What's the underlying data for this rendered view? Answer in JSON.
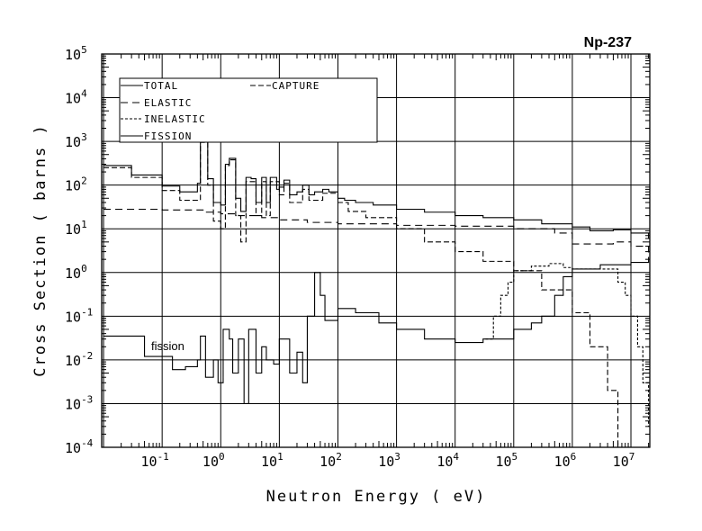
{
  "chart_data": {
    "type": "line",
    "title": "Np-237",
    "xlabel": "Neutron Energy ( eV)",
    "ylabel": "Cross Section ( barns )",
    "xscale": "log",
    "yscale": "log",
    "xlim": [
      0.0093,
      21000000
    ],
    "ylim": [
      0.0001,
      100000
    ],
    "grid": true,
    "legend_position": "top-left",
    "x_tick_exponents": [
      "-1",
      "0",
      "1",
      "2",
      "3",
      "4",
      "5",
      "6",
      "7"
    ],
    "y_tick_exponents": [
      "5",
      "4",
      "3",
      "2",
      "1",
      "0",
      "-1",
      "-2",
      "-3",
      "-4"
    ],
    "tick_base": "10",
    "annotation": "fission",
    "series": [
      {
        "name": "TOTAL",
        "style": "solid",
        "points": [
          [
            0.01,
            280
          ],
          [
            0.03,
            170
          ],
          [
            0.1,
            95
          ],
          [
            0.2,
            70
          ],
          [
            0.3,
            70
          ],
          [
            0.4,
            110
          ],
          [
            0.45,
            1000
          ],
          [
            0.6,
            140
          ],
          [
            0.75,
            40
          ],
          [
            1,
            35
          ],
          [
            1.2,
            300
          ],
          [
            1.4,
            410
          ],
          [
            1.8,
            50
          ],
          [
            2.2,
            25
          ],
          [
            2.7,
            150
          ],
          [
            3.3,
            140
          ],
          [
            4,
            40
          ],
          [
            5,
            150
          ],
          [
            6,
            40
          ],
          [
            7,
            150
          ],
          [
            9,
            80
          ],
          [
            10,
            90
          ],
          [
            12,
            130
          ],
          [
            15,
            60
          ],
          [
            20,
            70
          ],
          [
            25,
            100
          ],
          [
            32,
            60
          ],
          [
            40,
            70
          ],
          [
            55,
            80
          ],
          [
            70,
            70
          ],
          [
            100,
            50
          ],
          [
            130,
            45
          ],
          [
            200,
            40
          ],
          [
            400,
            35
          ],
          [
            1000,
            28
          ],
          [
            3000,
            24
          ],
          [
            10000,
            20
          ],
          [
            30000,
            18
          ],
          [
            100000,
            16
          ],
          [
            300000,
            13
          ],
          [
            1000000,
            11
          ],
          [
            2000000,
            9
          ],
          [
            5000000,
            9.5
          ],
          [
            10000000,
            8
          ],
          [
            20000000,
            6
          ]
        ]
      },
      {
        "name": "ELASTIC",
        "style": "dashed",
        "points": [
          [
            0.01,
            28
          ],
          [
            0.1,
            27
          ],
          [
            0.5,
            24
          ],
          [
            1,
            22
          ],
          [
            2,
            20
          ],
          [
            5,
            18
          ],
          [
            10,
            16
          ],
          [
            30,
            14
          ],
          [
            100,
            13
          ],
          [
            1000,
            12
          ],
          [
            10000,
            11.5
          ],
          [
            100000,
            10
          ],
          [
            500000,
            8
          ],
          [
            1000000,
            4.5
          ],
          [
            5000000,
            5
          ],
          [
            10000000,
            4
          ],
          [
            20000000,
            2
          ]
        ]
      },
      {
        "name": "INELASTIC",
        "style": "dotted",
        "points": [
          [
            33000,
            0.03
          ],
          [
            40000,
            0.03
          ],
          [
            45000,
            0.1
          ],
          [
            60000,
            0.3
          ],
          [
            80000,
            0.6
          ],
          [
            100000,
            1.1
          ],
          [
            200000,
            1.4
          ],
          [
            400000,
            1.6
          ],
          [
            700000,
            1.3
          ],
          [
            1000000,
            1.2
          ],
          [
            5000000,
            1.2
          ],
          [
            6000000,
            0.6
          ],
          [
            8000000,
            0.3
          ],
          [
            10000000,
            0.1
          ],
          [
            13000000,
            0.02
          ],
          [
            16000000,
            0.003
          ],
          [
            20000000,
            0.0003
          ]
        ]
      },
      {
        "name": "FISSION",
        "style": "solid",
        "points": [
          [
            0.01,
            0.035
          ],
          [
            0.05,
            0.012
          ],
          [
            0.15,
            0.006
          ],
          [
            0.25,
            0.007
          ],
          [
            0.4,
            0.01
          ],
          [
            0.45,
            0.035
          ],
          [
            0.55,
            0.004
          ],
          [
            0.75,
            0.01
          ],
          [
            0.9,
            0.003
          ],
          [
            1.1,
            0.05
          ],
          [
            1.4,
            0.03
          ],
          [
            1.6,
            0.005
          ],
          [
            2,
            0.03
          ],
          [
            2.5,
            0.001
          ],
          [
            3,
            0.05
          ],
          [
            4,
            0.005
          ],
          [
            5,
            0.02
          ],
          [
            6,
            0.01
          ],
          [
            8,
            0.008
          ],
          [
            10,
            0.03
          ],
          [
            15,
            0.005
          ],
          [
            20,
            0.015
          ],
          [
            25,
            0.003
          ],
          [
            30,
            0.1
          ],
          [
            40,
            1
          ],
          [
            50,
            0.3
          ],
          [
            60,
            0.08
          ],
          [
            100,
            0.15
          ],
          [
            200,
            0.12
          ],
          [
            500,
            0.07
          ],
          [
            1000,
            0.05
          ],
          [
            3000,
            0.03
          ],
          [
            10000,
            0.025
          ],
          [
            30000,
            0.03
          ],
          [
            100000,
            0.05
          ],
          [
            200000,
            0.07
          ],
          [
            300000,
            0.1
          ],
          [
            500000,
            0.3
          ],
          [
            700000,
            0.8
          ],
          [
            1000000,
            1.2
          ],
          [
            3000000,
            1.5
          ],
          [
            10000000,
            1.7
          ],
          [
            20000000,
            2
          ]
        ]
      },
      {
        "name": "CAPTURE",
        "style": "longdash",
        "points": [
          [
            0.01,
            250
          ],
          [
            0.03,
            150
          ],
          [
            0.1,
            75
          ],
          [
            0.2,
            45
          ],
          [
            0.3,
            45
          ],
          [
            0.45,
            950
          ],
          [
            0.6,
            100
          ],
          [
            0.75,
            15
          ],
          [
            1,
            10
          ],
          [
            1.2,
            280
          ],
          [
            1.4,
            380
          ],
          [
            1.8,
            20
          ],
          [
            2.2,
            5
          ],
          [
            2.7,
            120
          ],
          [
            4,
            20
          ],
          [
            5,
            120
          ],
          [
            6,
            20
          ],
          [
            7,
            120
          ],
          [
            10,
            60
          ],
          [
            12,
            110
          ],
          [
            15,
            40
          ],
          [
            25,
            80
          ],
          [
            32,
            45
          ],
          [
            55,
            65
          ],
          [
            100,
            40
          ],
          [
            150,
            25
          ],
          [
            300,
            18
          ],
          [
            1000,
            10
          ],
          [
            3000,
            5
          ],
          [
            10000,
            3
          ],
          [
            30000,
            1.8
          ],
          [
            100000,
            1.1
          ],
          [
            300000,
            0.4
          ],
          [
            1000000,
            0.12
          ],
          [
            2000000,
            0.02
          ],
          [
            4000000,
            0.002
          ],
          [
            6000000,
            0.0001
          ]
        ]
      }
    ]
  }
}
